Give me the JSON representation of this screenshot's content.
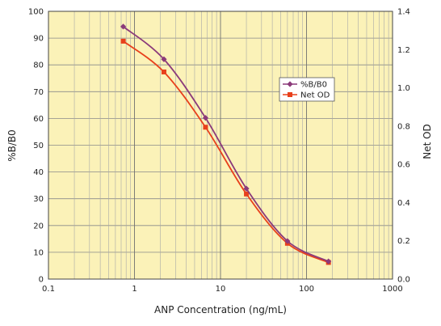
{
  "chart_data": {
    "type": "line",
    "xlabel": "ANP Concentration (ng/mL)",
    "ylabel": "%B/B0",
    "y2label": "Net OD",
    "x_scale": "log",
    "xlim": [
      0.1,
      1000
    ],
    "ylim": [
      0,
      100
    ],
    "y2lim": [
      0,
      1.4
    ],
    "x_ticks": [
      "0.1",
      "1",
      "10",
      "100",
      "1000"
    ],
    "y_ticks": [
      "0",
      "10",
      "20",
      "30",
      "40",
      "50",
      "60",
      "70",
      "80",
      "90",
      "100"
    ],
    "y2_ticks": [
      "0.0",
      "0.2",
      "0.4",
      "0.6",
      "0.8",
      "1.0",
      "1.2",
      "1.4"
    ],
    "grid": true,
    "legend_position": "right",
    "plot_background": "#fbf2b8",
    "series": [
      {
        "name": "%B/B0",
        "axis": "left",
        "marker": "diamond",
        "color": "#8b3a7a",
        "x": [
          0.74,
          2.2,
          6.7,
          20,
          60,
          180
        ],
        "y": [
          94.3,
          82.1,
          60.2,
          33.8,
          14.2,
          6.6
        ]
      },
      {
        "name": "Net OD",
        "axis": "right",
        "marker": "square",
        "color": "#e8401c",
        "x": [
          0.74,
          2.2,
          6.7,
          20,
          60,
          180
        ],
        "y": [
          1.244,
          1.083,
          0.794,
          0.445,
          0.187,
          0.087
        ]
      }
    ]
  }
}
